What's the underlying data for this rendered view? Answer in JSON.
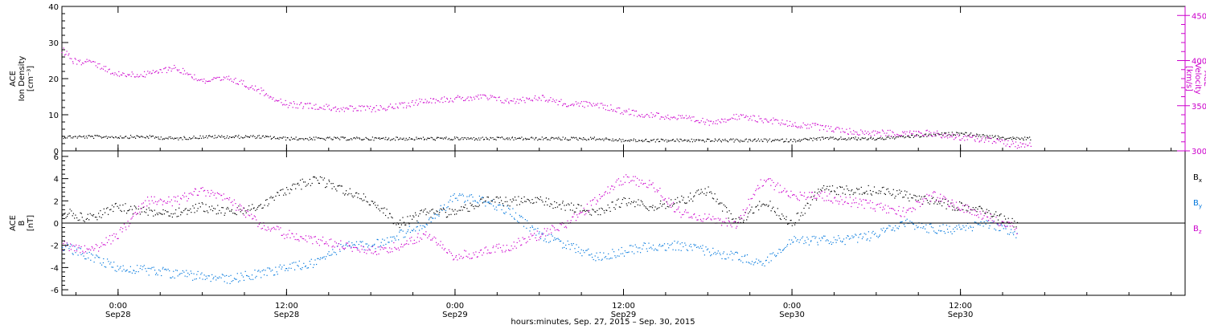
{
  "chart_data": {
    "type": "scatter",
    "xlabel": "hours:minutes, Sep. 27, 2015 – Sep. 30, 2015",
    "x_ticks": [
      {
        "time": "0:00",
        "date": "Sep28",
        "hours": 24
      },
      {
        "time": "12:00",
        "date": "Sep28",
        "hours": 36
      },
      {
        "time": "0:00",
        "date": "Sep29",
        "hours": 48
      },
      {
        "time": "12:00",
        "date": "Sep29",
        "hours": 60
      },
      {
        "time": "0:00",
        "date": "Sep30",
        "hours": 72
      },
      {
        "time": "12:00",
        "date": "Sep30",
        "hours": 84
      }
    ],
    "xlim_hours": [
      20,
      100
    ],
    "colors": {
      "black": "#000000",
      "magenta": "#cc00cc",
      "blue": "#0077dd"
    },
    "panels": [
      {
        "id": "density-velocity",
        "left_axis": {
          "label_lines": [
            "ACE",
            "Ion Density",
            "[cm⁻³]"
          ],
          "ylim": [
            0,
            40
          ],
          "ticks": [
            "0",
            "10",
            "20",
            "30",
            "40"
          ]
        },
        "right_axis": {
          "label_lines": [
            "ACE",
            "Velocity",
            "[km/s]"
          ],
          "ylim": [
            300,
            460
          ],
          "ticks": [
            "300",
            "350",
            "400",
            "450"
          ]
        },
        "series": [
          {
            "name": "Ion Density",
            "axis": "left",
            "color": "black",
            "points": [
              [
                20,
                4
              ],
              [
                22,
                4
              ],
              [
                24,
                4
              ],
              [
                26,
                4
              ],
              [
                28,
                3.5
              ],
              [
                30,
                4
              ],
              [
                32,
                4
              ],
              [
                34,
                4
              ],
              [
                36,
                3.5
              ],
              [
                38,
                3.5
              ],
              [
                40,
                3.5
              ],
              [
                42,
                3.5
              ],
              [
                44,
                3.5
              ],
              [
                46,
                3.5
              ],
              [
                48,
                3.5
              ],
              [
                50,
                3.5
              ],
              [
                52,
                3.5
              ],
              [
                54,
                3.5
              ],
              [
                56,
                3.5
              ],
              [
                58,
                3.5
              ],
              [
                60,
                3
              ],
              [
                62,
                3
              ],
              [
                64,
                3
              ],
              [
                66,
                3
              ],
              [
                68,
                3
              ],
              [
                70,
                3
              ],
              [
                72,
                3
              ],
              [
                74,
                3.5
              ],
              [
                76,
                3.5
              ],
              [
                78,
                3.5
              ],
              [
                80,
                4
              ],
              [
                82,
                4.5
              ],
              [
                84,
                5
              ],
              [
                86,
                4
              ],
              [
                88,
                3.5
              ],
              [
                89,
                3.5
              ]
            ]
          },
          {
            "name": "Velocity",
            "axis": "right",
            "color": "magenta",
            "points": [
              [
                20,
                412
              ],
              [
                21,
                398
              ],
              [
                22,
                400
              ],
              [
                23,
                392
              ],
              [
                24,
                385
              ],
              [
                26,
                385
              ],
              [
                28,
                393
              ],
              [
                30,
                378
              ],
              [
                32,
                380
              ],
              [
                34,
                368
              ],
              [
                36,
                352
              ],
              [
                38,
                350
              ],
              [
                40,
                347
              ],
              [
                42,
                347
              ],
              [
                44,
                350
              ],
              [
                46,
                357
              ],
              [
                48,
                358
              ],
              [
                50,
                360
              ],
              [
                52,
                355
              ],
              [
                54,
                360
              ],
              [
                56,
                352
              ],
              [
                58,
                352
              ],
              [
                60,
                344
              ],
              [
                62,
                340
              ],
              [
                64,
                337
              ],
              [
                66,
                332
              ],
              [
                68,
                338
              ],
              [
                70,
                335
              ],
              [
                72,
                330
              ],
              [
                74,
                327
              ],
              [
                76,
                322
              ],
              [
                78,
                320
              ],
              [
                80,
                320
              ],
              [
                82,
                320
              ],
              [
                84,
                315
              ],
              [
                86,
                313
              ],
              [
                88,
                307
              ],
              [
                89,
                306
              ]
            ]
          }
        ]
      },
      {
        "id": "magnetic-field",
        "left_axis": {
          "label_lines": [
            "ACE",
            "B",
            "[nT]"
          ],
          "ylim": [
            -6.5,
            6.5
          ],
          "ticks": [
            "-6",
            "-4",
            "-2",
            "0",
            "2",
            "4",
            "6"
          ]
        },
        "zero_line": true,
        "legend_position": "right",
        "series": [
          {
            "name": "B",
            "subscript": "x",
            "color": "black",
            "points": [
              [
                20,
                1
              ],
              [
                22,
                0.5
              ],
              [
                24,
                1.5
              ],
              [
                26,
                1
              ],
              [
                28,
                1
              ],
              [
                30,
                1.5
              ],
              [
                32,
                1
              ],
              [
                34,
                1.5
              ],
              [
                36,
                3
              ],
              [
                38,
                4
              ],
              [
                40,
                3
              ],
              [
                42,
                2
              ],
              [
                44,
                0
              ],
              [
                46,
                1
              ],
              [
                48,
                1
              ],
              [
                50,
                2
              ],
              [
                52,
                2
              ],
              [
                54,
                2
              ],
              [
                56,
                1.5
              ],
              [
                58,
                1
              ],
              [
                60,
                2
              ],
              [
                62,
                1.5
              ],
              [
                64,
                2
              ],
              [
                66,
                3
              ],
              [
                68,
                0
              ],
              [
                70,
                2
              ],
              [
                72,
                0
              ],
              [
                74,
                3
              ],
              [
                76,
                3
              ],
              [
                78,
                3
              ],
              [
                80,
                2.5
              ],
              [
                82,
                2
              ],
              [
                84,
                1.5
              ],
              [
                86,
                1
              ],
              [
                88,
                0
              ]
            ]
          },
          {
            "name": "B",
            "subscript": "y",
            "color": "blue",
            "points": [
              [
                20,
                -2
              ],
              [
                22,
                -3
              ],
              [
                24,
                -4
              ],
              [
                26,
                -4.2
              ],
              [
                28,
                -4.5
              ],
              [
                30,
                -4.8
              ],
              [
                32,
                -5
              ],
              [
                34,
                -4.5
              ],
              [
                36,
                -4
              ],
              [
                38,
                -3.5
              ],
              [
                40,
                -2
              ],
              [
                42,
                -2
              ],
              [
                44,
                -1
              ],
              [
                46,
                0
              ],
              [
                48,
                2.5
              ],
              [
                50,
                2
              ],
              [
                52,
                1
              ],
              [
                54,
                -1
              ],
              [
                56,
                -2
              ],
              [
                58,
                -3
              ],
              [
                60,
                -2.5
              ],
              [
                62,
                -2
              ],
              [
                64,
                -2
              ],
              [
                66,
                -2.5
              ],
              [
                68,
                -3
              ],
              [
                70,
                -3.5
              ],
              [
                72,
                -1.5
              ],
              [
                74,
                -1.5
              ],
              [
                76,
                -1.5
              ],
              [
                78,
                -1
              ],
              [
                80,
                0
              ],
              [
                82,
                -0.5
              ],
              [
                84,
                -0.5
              ],
              [
                86,
                0
              ],
              [
                88,
                -1
              ]
            ]
          },
          {
            "name": "B",
            "subscript": "z",
            "color": "magenta",
            "points": [
              [
                20,
                -2
              ],
              [
                22,
                -2.5
              ],
              [
                24,
                -1
              ],
              [
                26,
                2
              ],
              [
                28,
                2
              ],
              [
                30,
                3
              ],
              [
                32,
                2
              ],
              [
                34,
                0
              ],
              [
                36,
                -1
              ],
              [
                38,
                -1.5
              ],
              [
                40,
                -2
              ],
              [
                42,
                -2.5
              ],
              [
                44,
                -2
              ],
              [
                46,
                -1
              ],
              [
                48,
                -3
              ],
              [
                50,
                -2.5
              ],
              [
                52,
                -2
              ],
              [
                54,
                -1
              ],
              [
                56,
                0
              ],
              [
                58,
                2
              ],
              [
                60,
                4
              ],
              [
                62,
                3.5
              ],
              [
                64,
                1
              ],
              [
                66,
                0.5
              ],
              [
                68,
                0
              ],
              [
                70,
                4
              ],
              [
                72,
                2.5
              ],
              [
                74,
                2.5
              ],
              [
                76,
                2
              ],
              [
                78,
                1.5
              ],
              [
                80,
                1
              ],
              [
                82,
                2.5
              ],
              [
                84,
                1.5
              ],
              [
                86,
                0.5
              ],
              [
                88,
                -0.5
              ]
            ]
          }
        ]
      }
    ]
  }
}
